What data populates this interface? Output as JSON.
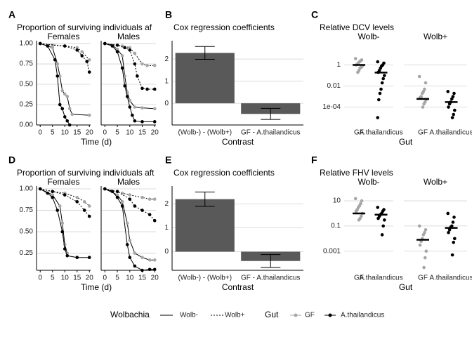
{
  "chart_data": [
    {
      "type": "survival",
      "label": "A",
      "title": "Proportion of surviving individuals af",
      "xlabel": "Time (d)",
      "xlim": [
        -1.5,
        20.5
      ],
      "ylim": [
        0,
        1.035
      ],
      "xticks": [
        0,
        5,
        10,
        15,
        20
      ],
      "yticks": [
        {
          "value": 0,
          "label": "0.00"
        },
        {
          "value": 0.25,
          "label": "0.25"
        },
        {
          "value": 0.5,
          "label": "0.50"
        },
        {
          "value": 0.75,
          "label": "0.75"
        },
        {
          "value": 1,
          "label": "1.00"
        }
      ],
      "grid": true,
      "facets": [
        {
          "name": "Females",
          "series": [
            {
              "color": "#a6a6a6",
              "dash": "solid",
              "x": [
                0,
                5,
                7,
                8,
                9,
                10,
                11,
                12,
                13,
                20
              ],
              "values": [
                1,
                0.95,
                0.75,
                0.6,
                0.42,
                0.38,
                0.35,
                0.2,
                0.13,
                0.12
              ]
            },
            {
              "color": "#000000",
              "dash": "solid",
              "x": [
                0,
                3,
                6,
                7,
                8,
                9,
                10,
                11,
                12
              ],
              "values": [
                1,
                0.97,
                0.8,
                0.6,
                0.25,
                0.2,
                0.1,
                0.05,
                0
              ]
            },
            {
              "color": "#a6a6a6",
              "dash": "dotted",
              "x": [
                0,
                5,
                10,
                15,
                17,
                20
              ],
              "values": [
                1,
                0.98,
                0.97,
                0.95,
                0.9,
                0.8
              ]
            },
            {
              "color": "#000000",
              "dash": "dotted",
              "x": [
                0,
                10,
                15,
                17,
                19,
                20
              ],
              "values": [
                1,
                0.97,
                0.92,
                0.85,
                0.78,
                0.65
              ]
            }
          ]
        },
        {
          "name": "Males",
          "series": [
            {
              "color": "#a6a6a6",
              "dash": "solid",
              "x": [
                0,
                3,
                5,
                7,
                8,
                9,
                10,
                12,
                15,
                20
              ],
              "values": [
                1,
                0.98,
                0.93,
                0.85,
                0.6,
                0.4,
                0.3,
                0.22,
                0.21,
                0.2
              ]
            },
            {
              "color": "#000000",
              "dash": "solid",
              "x": [
                0,
                3,
                5,
                7,
                8,
                9,
                10,
                11,
                12,
                15,
                20
              ],
              "values": [
                1,
                0.97,
                0.9,
                0.7,
                0.48,
                0.35,
                0.22,
                0.12,
                0.05,
                0.04,
                0.04
              ]
            },
            {
              "color": "#a6a6a6",
              "dash": "dotted",
              "x": [
                0,
                7,
                10,
                12,
                15,
                17,
                20
              ],
              "values": [
                1,
                0.97,
                0.95,
                0.88,
                0.75,
                0.73,
                0.73
              ]
            },
            {
              "color": "#000000",
              "dash": "dotted",
              "x": [
                0,
                5,
                8,
                10,
                12,
                13,
                15,
                17,
                20
              ],
              "values": [
                1,
                0.98,
                0.95,
                0.92,
                0.75,
                0.6,
                0.45,
                0.44,
                0.44
              ]
            }
          ]
        }
      ]
    },
    {
      "type": "bar",
      "label": "B",
      "title": "Cox regression coefficients",
      "xlabel": "Contrast",
      "categories": [
        "(Wolb-) - (Wolb+)",
        "GF - A.thailandicus"
      ],
      "values": [
        2.28,
        -0.48
      ],
      "errors": [
        0.29,
        0.25
      ],
      "color": "#595959",
      "ylim": [
        -0.98,
        2.83
      ],
      "yticks": [
        0,
        1,
        2
      ],
      "grid": true
    },
    {
      "type": "strip",
      "label": "C",
      "title": "Relative DCV levels",
      "xlabel": "Gut",
      "log": true,
      "ylim": [
        2e-06,
        200
      ],
      "yticks": [
        1,
        0.01,
        {
          "value": 0.0001,
          "label": "1e-04"
        }
      ],
      "grid": true,
      "categories": [
        "GF",
        "A.thailandicus"
      ],
      "colors": [
        "#a6a6a6",
        "#000000"
      ],
      "facets": [
        {
          "name": "Wolb-",
          "groups": [
            {
              "values": [
                4,
                3,
                2.5,
                2,
                1.5,
                1.2,
                1,
                0.8,
                0.6,
                0.5,
                0.3,
                0.2
              ],
              "median": 1
            },
            {
              "values": [
                2,
                1.5,
                1,
                0.8,
                0.5,
                0.3,
                0.2,
                0.1,
                0.05,
                0.02,
                0.005,
                0.002,
                0.0005,
                1e-05
              ],
              "median": 0.19
            }
          ]
        },
        {
          "name": "Wolb+",
          "groups": [
            {
              "values": [
                0.08,
                0.02,
                0.005,
                0.003,
                0.002,
                0.001,
                0.0008,
                0.0005,
                0.0003,
                0.0002,
                0.0001
              ],
              "median": 0.0006
            },
            {
              "values": [
                0.003,
                0.002,
                0.001,
                0.0006,
                0.0003,
                0.0002,
                0.0001,
                5e-05,
                2e-05,
                1e-05
              ],
              "median": 0.0003
            }
          ]
        }
      ]
    },
    {
      "type": "survival",
      "label": "D",
      "title": "Proportion of surviving individuals aft",
      "xlabel": "Time (d)",
      "xlim": [
        -1.5,
        20.5
      ],
      "ylim": [
        0.05,
        1.033
      ],
      "xticks": [
        0,
        5,
        10,
        15,
        20
      ],
      "yticks": [
        {
          "value": 0.25,
          "label": "0.25"
        },
        {
          "value": 0.5,
          "label": "0.50"
        },
        {
          "value": 0.75,
          "label": "0.75"
        },
        {
          "value": 1,
          "label": "1.00"
        }
      ],
      "grid": true,
      "facets": [
        {
          "name": "Females",
          "series": [
            {
              "color": "#a6a6a6",
              "dash": "solid",
              "x": [
                0,
                5,
                8,
                9,
                10,
                11
              ],
              "values": [
                1,
                0.93,
                0.8,
                0.6,
                0.35,
                0.25
              ]
            },
            {
              "color": "#000000",
              "dash": "solid",
              "x": [
                0,
                3,
                5,
                7,
                9,
                10,
                11,
                15,
                20
              ],
              "values": [
                1,
                0.95,
                0.9,
                0.75,
                0.5,
                0.3,
                0.22,
                0.2,
                0.2
              ]
            },
            {
              "color": "#a6a6a6",
              "dash": "dotted",
              "x": [
                0,
                5,
                10,
                15,
                18,
                20
              ],
              "values": [
                1,
                0.97,
                0.95,
                0.9,
                0.85,
                0.8
              ]
            },
            {
              "color": "#000000",
              "dash": "dotted",
              "x": [
                0,
                5,
                10,
                15,
                18,
                20
              ],
              "values": [
                1,
                0.97,
                0.93,
                0.85,
                0.75,
                0.68
              ]
            }
          ]
        },
        {
          "name": "Males",
          "series": [
            {
              "color": "#a6a6a6",
              "dash": "solid",
              "x": [
                0,
                5,
                7,
                9,
                10,
                12,
                15,
                18,
                20
              ],
              "values": [
                1,
                0.93,
                0.85,
                0.6,
                0.4,
                0.25,
                0.2,
                0.17,
                0.17
              ]
            },
            {
              "color": "#000000",
              "dash": "solid",
              "x": [
                0,
                3,
                5,
                7,
                9,
                10,
                12,
                15,
                18,
                20
              ],
              "values": [
                1,
                0.97,
                0.9,
                0.8,
                0.35,
                0.2,
                0.1,
                0.05,
                0.06,
                0.06
              ]
            },
            {
              "color": "#a6a6a6",
              "dash": "dotted",
              "x": [
                0,
                7,
                10,
                15,
                18,
                20
              ],
              "values": [
                1,
                0.95,
                0.93,
                0.9,
                0.88,
                0.88
              ]
            },
            {
              "color": "#000000",
              "dash": "dotted",
              "x": [
                0,
                5,
                10,
                12,
                15,
                18,
                20
              ],
              "values": [
                1,
                0.97,
                0.88,
                0.8,
                0.75,
                0.7,
                0.63
              ]
            }
          ]
        }
      ]
    },
    {
      "type": "bar",
      "label": "E",
      "title": "Cox regression coefficients",
      "xlabel": "Contrast",
      "categories": [
        "(Wolb-) - (Wolb+)",
        "GF - A.thailandicus"
      ],
      "values": [
        2.2,
        -0.39
      ],
      "errors": [
        0.3,
        0.27
      ],
      "color": "#595959",
      "ylim": [
        -0.78,
        2.75
      ],
      "yticks": [
        0,
        1,
        2
      ],
      "grid": true
    },
    {
      "type": "strip",
      "label": "F",
      "title": "Relative FHV levels",
      "xlabel": "Gut",
      "log": true,
      "ylim": [
        3e-05,
        150
      ],
      "yticks": [
        10,
        0.1,
        0.001
      ],
      "grid": true,
      "categories": [
        "GF",
        "A.thailandicus"
      ],
      "colors": [
        "#a6a6a6",
        "#000000"
      ],
      "facets": [
        {
          "name": "Wolb-",
          "groups": [
            {
              "values": [
                15,
                10,
                6,
                4,
                3,
                2,
                1.5,
                1,
                0.6,
                0.4,
                0.3
              ],
              "median": 1
            },
            {
              "values": [
                3,
                2,
                1.5,
                1,
                0.8,
                0.6,
                0.4,
                0.3,
                0.1,
                0.02
              ],
              "median": 0.8
            }
          ]
        },
        {
          "name": "Wolb+",
          "groups": [
            {
              "values": [
                0.1,
                0.05,
                0.03,
                0.02,
                0.01,
                0.006,
                0.003,
                0.001,
                0.0003,
                5e-05
              ],
              "median": 0.008
            },
            {
              "values": [
                1,
                0.5,
                0.2,
                0.1,
                0.08,
                0.05,
                0.03,
                0.01,
                0.005,
                0.0005
              ],
              "median": 0.07
            }
          ]
        }
      ]
    }
  ],
  "legend": {
    "wolbachia_title": "Wolbachia",
    "wolbachia": [
      {
        "name": "Wolb-",
        "dash": "solid"
      },
      {
        "name": "Wolb+",
        "dash": "dotted"
      }
    ],
    "gut_title": "Gut",
    "gut": [
      {
        "name": "GF",
        "color": "#a6a6a6"
      },
      {
        "name": "A.thailandicus",
        "color": "#000000"
      }
    ]
  }
}
